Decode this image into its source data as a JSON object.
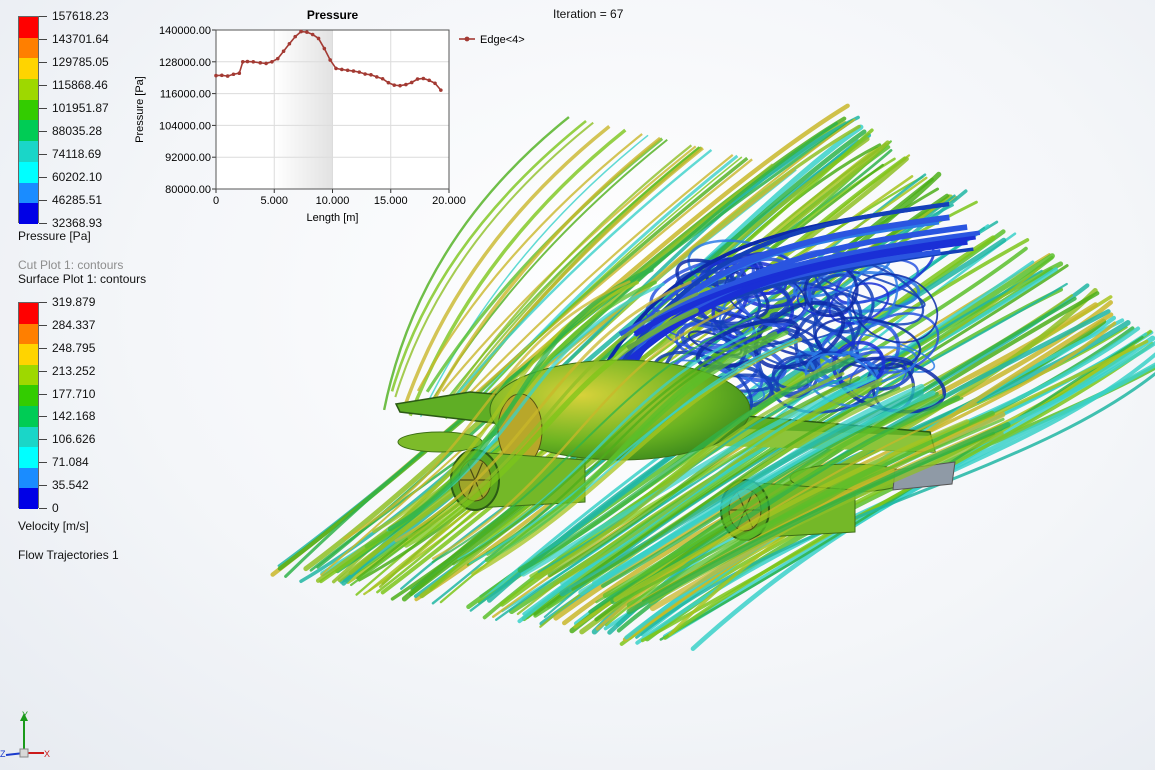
{
  "iteration_label": "Iteration = 67",
  "pressure_legend": {
    "title": "Pressure [Pa]",
    "values": [
      "157618.23",
      "143701.64",
      "129785.05",
      "115868.46",
      "101951.87",
      "88035.28",
      "74118.69",
      "60202.10",
      "46285.51",
      "32368.93"
    ],
    "colors": [
      "#ff0000",
      "#ff7f00",
      "#ffd400",
      "#9ed800",
      "#33cc00",
      "#00cc55",
      "#1ad6c8",
      "#00ffff",
      "#1a8cff",
      "#0000e6"
    ]
  },
  "plot_captions": {
    "cut_plot": "Cut Plot 1: contours",
    "surface_plot": "Surface Plot 1: contours",
    "flow_trajectories": "Flow Trajectories 1"
  },
  "velocity_legend": {
    "title": "Velocity [m/s]",
    "values": [
      "319.879",
      "284.337",
      "248.795",
      "213.252",
      "177.710",
      "142.168",
      "106.626",
      "71.084",
      "35.542",
      "0"
    ],
    "colors": [
      "#ff0000",
      "#ff7f00",
      "#ffd400",
      "#9ed800",
      "#33cc00",
      "#00cc55",
      "#1ad6c8",
      "#00ffff",
      "#1a8cff",
      "#0000e6"
    ]
  },
  "chart_data": {
    "type": "line",
    "title": "Pressure",
    "xlabel": "Length [m]",
    "ylabel": "Pressure [Pa]",
    "xlim": [
      0,
      20
    ],
    "ylim": [
      80000,
      140000
    ],
    "xticks": [
      "0",
      "5.000",
      "10.000",
      "15.000",
      "20.000"
    ],
    "yticks": [
      "80000.00",
      "92000.00",
      "104000.00",
      "116000.00",
      "128000.00",
      "140000.00"
    ],
    "grid": true,
    "highlight_range": [
      5,
      10
    ],
    "series": [
      {
        "name": "Edge<4>",
        "color": "#a33a33",
        "x": [
          0,
          0.5,
          1.0,
          1.5,
          2.0,
          2.3,
          2.7,
          3.2,
          3.8,
          4.3,
          4.8,
          5.3,
          5.8,
          6.3,
          6.8,
          7.3,
          7.8,
          8.3,
          8.8,
          9.3,
          9.8,
          10.3,
          10.8,
          11.3,
          11.8,
          12.3,
          12.8,
          13.3,
          13.8,
          14.3,
          14.8,
          15.3,
          15.8,
          16.3,
          16.8,
          17.3,
          17.8,
          18.3,
          18.8,
          19.3
        ],
        "y": [
          122800,
          122900,
          122600,
          123300,
          123700,
          128000,
          128100,
          128000,
          127600,
          127400,
          128000,
          129200,
          132000,
          134800,
          137500,
          139400,
          139200,
          138300,
          136800,
          133000,
          128700,
          125500,
          125100,
          124800,
          124500,
          124100,
          123400,
          123100,
          122300,
          121600,
          120100,
          119200,
          119000,
          119400,
          120200,
          121500,
          121700,
          121000,
          119900,
          117300
        ]
      }
    ]
  }
}
